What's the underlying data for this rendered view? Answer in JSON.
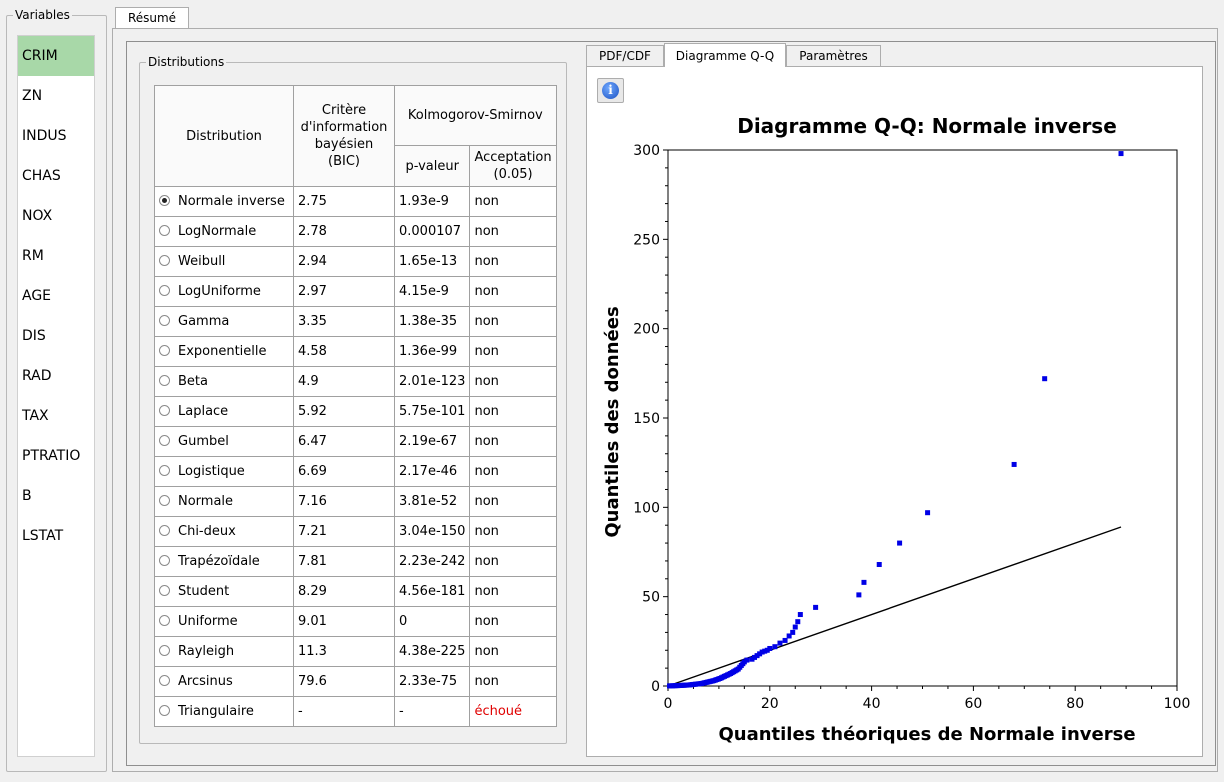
{
  "variables": {
    "title": "Variables",
    "items": [
      "CRIM",
      "ZN",
      "INDUS",
      "CHAS",
      "NOX",
      "RM",
      "AGE",
      "DIS",
      "RAD",
      "TAX",
      "PTRATIO",
      "B",
      "LSTAT"
    ],
    "selected": "CRIM"
  },
  "main_tab": {
    "label": "Résumé"
  },
  "distributions": {
    "title": "Distributions",
    "headers": {
      "distribution": "Distribution",
      "bic": "Critère d'information bayésien (BIC)",
      "ks": "Kolmogorov-Smirnov",
      "pvalue": "p-valeur",
      "acceptance": "Acceptation (0.05)"
    },
    "rows": [
      {
        "name": "Normale inverse",
        "bic": "2.75",
        "pvalue": "1.93e-9",
        "accept": "non",
        "checked": true
      },
      {
        "name": "LogNormale",
        "bic": "2.78",
        "pvalue": "0.000107",
        "accept": "non"
      },
      {
        "name": "Weibull",
        "bic": "2.94",
        "pvalue": "1.65e-13",
        "accept": "non"
      },
      {
        "name": "LogUniforme",
        "bic": "2.97",
        "pvalue": "4.15e-9",
        "accept": "non"
      },
      {
        "name": "Gamma",
        "bic": "3.35",
        "pvalue": "1.38e-35",
        "accept": "non"
      },
      {
        "name": "Exponentielle",
        "bic": "4.58",
        "pvalue": "1.36e-99",
        "accept": "non"
      },
      {
        "name": "Beta",
        "bic": "4.9",
        "pvalue": "2.01e-123",
        "accept": "non"
      },
      {
        "name": "Laplace",
        "bic": "5.92",
        "pvalue": "5.75e-101",
        "accept": "non"
      },
      {
        "name": "Gumbel",
        "bic": "6.47",
        "pvalue": "2.19e-67",
        "accept": "non"
      },
      {
        "name": "Logistique",
        "bic": "6.69",
        "pvalue": "2.17e-46",
        "accept": "non"
      },
      {
        "name": "Normale",
        "bic": "7.16",
        "pvalue": "3.81e-52",
        "accept": "non"
      },
      {
        "name": "Chi-deux",
        "bic": "7.21",
        "pvalue": "3.04e-150",
        "accept": "non"
      },
      {
        "name": "Trapézoïdale",
        "bic": "7.81",
        "pvalue": "2.23e-242",
        "accept": "non"
      },
      {
        "name": "Student",
        "bic": "8.29",
        "pvalue": "4.56e-181",
        "accept": "non"
      },
      {
        "name": "Uniforme",
        "bic": "9.01",
        "pvalue": "0",
        "accept": "non"
      },
      {
        "name": "Rayleigh",
        "bic": "11.3",
        "pvalue": "4.38e-225",
        "accept": "non"
      },
      {
        "name": "Arcsinus",
        "bic": "79.6",
        "pvalue": "2.33e-75",
        "accept": "non"
      },
      {
        "name": "Triangulaire",
        "bic": "-",
        "pvalue": "-",
        "accept": "échoué",
        "failed": true
      }
    ]
  },
  "chart_tabs": [
    "PDF/CDF",
    "Diagramme Q-Q",
    "Paramètres"
  ],
  "active_chart_tab": "Diagramme Q-Q",
  "colors": {
    "points": "#0000e6",
    "line": "#000000",
    "fail": "#e00000",
    "selected_var": "#a8d8a8"
  },
  "chart_data": {
    "type": "scatter",
    "title": "Diagramme Q-Q: Normale inverse",
    "xlabel": "Quantiles théoriques de Normale inverse",
    "ylabel": "Quantiles des données",
    "xlim": [
      0,
      100
    ],
    "ylim": [
      0,
      300
    ],
    "xticks": [
      0,
      20,
      40,
      60,
      80,
      100
    ],
    "yticks": [
      0,
      50,
      100,
      150,
      200,
      250,
      300
    ],
    "reference_line": [
      [
        0,
        0
      ],
      [
        89,
        89
      ]
    ],
    "points": [
      [
        0.3,
        0.05
      ],
      [
        0.6,
        0.1
      ],
      [
        0.9,
        0.1
      ],
      [
        1.2,
        0.15
      ],
      [
        1.5,
        0.2
      ],
      [
        1.8,
        0.2
      ],
      [
        2.1,
        0.25
      ],
      [
        2.4,
        0.3
      ],
      [
        2.7,
        0.35
      ],
      [
        3.0,
        0.4
      ],
      [
        3.3,
        0.45
      ],
      [
        3.6,
        0.5
      ],
      [
        3.9,
        0.55
      ],
      [
        4.2,
        0.6
      ],
      [
        4.5,
        0.7
      ],
      [
        4.8,
        0.8
      ],
      [
        5.1,
        0.9
      ],
      [
        5.4,
        1.0
      ],
      [
        5.7,
        1.1
      ],
      [
        6.0,
        1.2
      ],
      [
        6.3,
        1.3
      ],
      [
        6.6,
        1.4
      ],
      [
        6.9,
        1.6
      ],
      [
        7.2,
        1.8
      ],
      [
        7.5,
        2.0
      ],
      [
        7.8,
        2.2
      ],
      [
        8.1,
        2.4
      ],
      [
        8.4,
        2.6
      ],
      [
        8.7,
        2.8
      ],
      [
        9.0,
        3.0
      ],
      [
        9.3,
        3.3
      ],
      [
        9.6,
        3.6
      ],
      [
        9.9,
        3.9
      ],
      [
        10.2,
        4.2
      ],
      [
        10.5,
        4.6
      ],
      [
        10.8,
        5.0
      ],
      [
        11.1,
        5.4
      ],
      [
        11.4,
        5.8
      ],
      [
        11.7,
        6.2
      ],
      [
        12.0,
        6.6
      ],
      [
        12.3,
        7.0
      ],
      [
        12.6,
        7.5
      ],
      [
        12.9,
        8.0
      ],
      [
        13.2,
        8.5
      ],
      [
        13.5,
        9.0
      ],
      [
        13.8,
        9.5
      ],
      [
        14.1,
        10.5
      ],
      [
        14.4,
        11.5
      ],
      [
        14.7,
        12.5
      ],
      [
        15.0,
        13.5
      ],
      [
        15.5,
        14.5
      ],
      [
        16.5,
        15.0
      ],
      [
        17.0,
        16.0
      ],
      [
        17.5,
        17.0
      ],
      [
        18.0,
        18.0
      ],
      [
        18.5,
        19.0
      ],
      [
        19.0,
        19.5
      ],
      [
        19.5,
        20.0
      ],
      [
        20.0,
        21.0
      ],
      [
        21.0,
        22.0
      ],
      [
        22.0,
        24.0
      ],
      [
        23.0,
        25.5
      ],
      [
        23.8,
        28.0
      ],
      [
        24.5,
        30.0
      ],
      [
        25.0,
        33.0
      ],
      [
        25.5,
        36.0
      ],
      [
        26.0,
        40.0
      ],
      [
        29.0,
        44.0
      ],
      [
        37.5,
        51.0
      ],
      [
        38.5,
        58.0
      ],
      [
        41.5,
        68.0
      ],
      [
        45.5,
        80.0
      ],
      [
        51.0,
        97.0
      ],
      [
        68.0,
        124.0
      ],
      [
        74.0,
        172.0
      ],
      [
        89.0,
        298.0
      ]
    ]
  }
}
